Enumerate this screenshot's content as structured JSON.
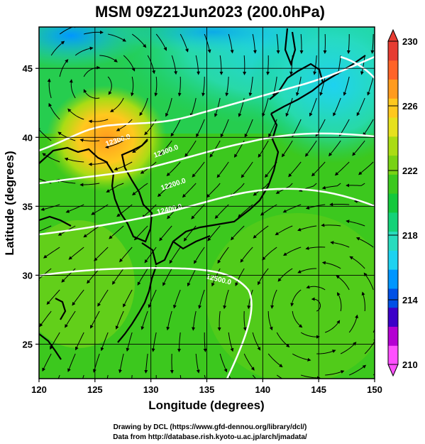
{
  "title": "MSM 09Z21Jun2023 (200.0hPa)",
  "x_axis": {
    "label": "Longitude (degrees)",
    "range": [
      120,
      150
    ],
    "ticks": [
      "120",
      "125",
      "130",
      "135",
      "140",
      "145",
      "150"
    ]
  },
  "y_axis": {
    "label": "Latitude  (degrees)",
    "range": [
      22.5,
      48
    ],
    "ticks": [
      "25",
      "30",
      "35",
      "40",
      "45"
    ]
  },
  "colorbar": {
    "range": [
      210,
      230
    ],
    "ticks": [
      "230",
      "226",
      "222",
      "218",
      "214",
      "210"
    ],
    "colors": [
      "#ff50ff",
      "#b400d2",
      "#3c00c8",
      "#0050e6",
      "#0096ff",
      "#1ed2f0",
      "#28dcbe",
      "#14d278",
      "#14c83c",
      "#3cc81e",
      "#78d214",
      "#aadc14",
      "#e6e11e",
      "#ffc81e",
      "#ff9b1e",
      "#ff6428",
      "#e63c32"
    ],
    "extend": "both"
  },
  "contours": {
    "labels": [
      "12300.0",
      "12200.0",
      "12400.0",
      "12500.0"
    ],
    "color": "#ffffff"
  },
  "grid": true,
  "credits": {
    "line1": "Drawing by DCL (https://www.gfd-dennou.org/library/dcl/)",
    "line2": "Data from http://database.rish.kyoto-u.ac.jp/arch/jmadata/"
  }
}
